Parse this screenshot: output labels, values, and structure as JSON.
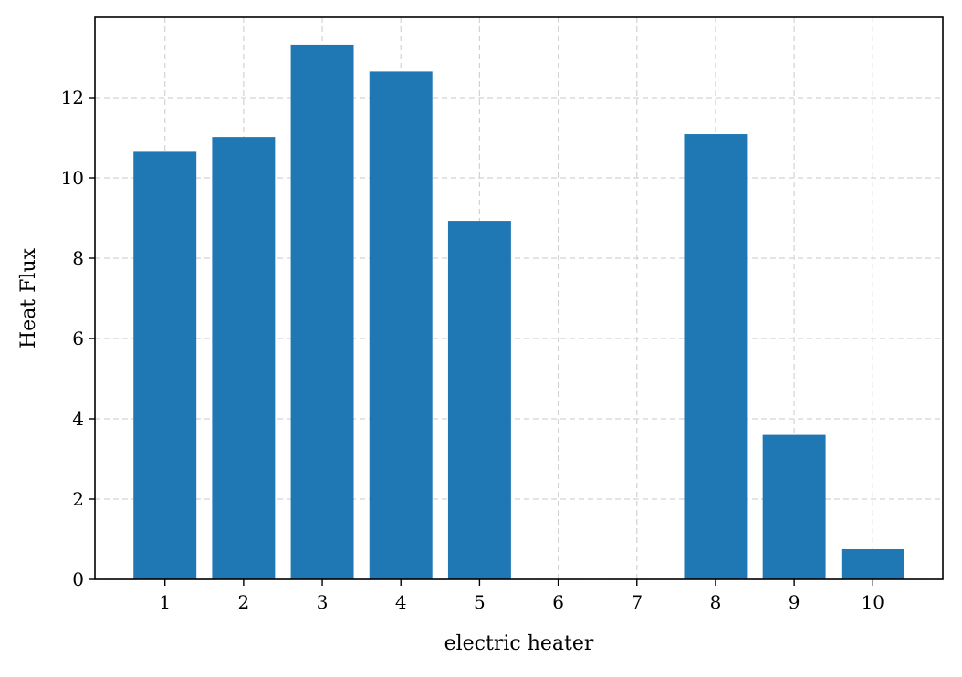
{
  "chart_data": {
    "type": "bar",
    "title": "",
    "xlabel": "electric heater",
    "ylabel": "Heat Flux",
    "categories": [
      "1",
      "2",
      "3",
      "4",
      "5",
      "6",
      "7",
      "8",
      "9",
      "10"
    ],
    "values": [
      10.65,
      11.02,
      13.32,
      12.65,
      8.93,
      0,
      0,
      11.09,
      3.6,
      0.75
    ],
    "ylim": [
      0,
      14
    ],
    "yticks": [
      0,
      2,
      4,
      6,
      8,
      10,
      12
    ],
    "ytick_labels": [
      "0",
      "2",
      "4",
      "6",
      "8",
      "10",
      "12"
    ],
    "grid": true,
    "bar_color": "#1f77b4",
    "grid_color": "#d3d3d3",
    "legend": "none"
  }
}
